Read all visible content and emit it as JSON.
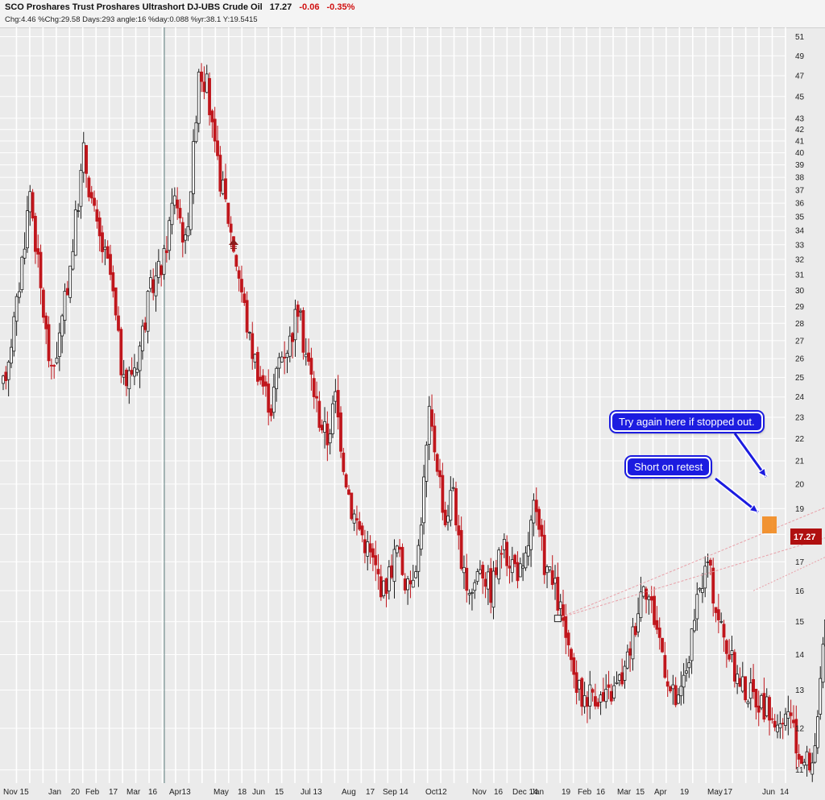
{
  "header": {
    "title": "SCO Proshares Trust Proshares Ultrashort DJ-UBS Crude Oil",
    "last": "17.27",
    "change": "-0.06",
    "change_pct": "-0.35%",
    "stats": "Chg:4.46 %Chg:29.58 Days:293 angle:16 %day:0.088 %yr:38.1 Y:19.5415"
  },
  "colors": {
    "up": "#1a1a1a",
    "down": "#c0161c",
    "grid": "#ffffff",
    "background": "#ebebeb",
    "trendline": "#e8a0a8",
    "price_tag": "#b01010",
    "annotation": "#1c1ce0",
    "orange_box": "#f28a1e"
  },
  "annotations": [
    {
      "text": "Try again here if stopped out."
    },
    {
      "text": "Short on retest"
    }
  ],
  "price_tag": "17.27",
  "chart_data": {
    "type": "candlestick",
    "scale": "log",
    "ylim": [
      10.7,
      52
    ],
    "y_ticks": [
      11,
      12,
      13,
      14,
      15,
      16,
      17,
      18,
      19,
      20,
      21,
      22,
      23,
      24,
      25,
      26,
      27,
      28,
      29,
      30,
      31,
      32,
      33,
      34,
      35,
      36,
      37,
      38,
      39,
      40,
      41,
      42,
      43,
      45,
      47,
      49,
      51
    ],
    "x_ticks": [
      "Nov 15",
      "Jan",
      "20",
      "Feb",
      "17",
      "Mar",
      "16",
      "Apr13",
      "May",
      "18",
      "Jun",
      "15",
      "Jul 13",
      "Aug",
      "17",
      "Sep 14",
      "Oct12",
      "Nov",
      "16",
      "Dec 14",
      "Jan",
      "19",
      "Feb",
      "16",
      "Mar",
      "15",
      "Apr",
      "19",
      "May",
      "17",
      "Jun",
      "14"
    ],
    "grid": true,
    "bars": 293,
    "price_path": [
      [
        0,
        24.5
      ],
      [
        5,
        29
      ],
      [
        10,
        37
      ],
      [
        14,
        30
      ],
      [
        18,
        25
      ],
      [
        22,
        28
      ],
      [
        26,
        33
      ],
      [
        30,
        40
      ],
      [
        35,
        34
      ],
      [
        40,
        31
      ],
      [
        45,
        24.5
      ],
      [
        50,
        26
      ],
      [
        55,
        30
      ],
      [
        60,
        32
      ],
      [
        64,
        37
      ],
      [
        68,
        33
      ],
      [
        71,
        40
      ],
      [
        73,
        48
      ],
      [
        76,
        46
      ],
      [
        79,
        40
      ],
      [
        83,
        36
      ],
      [
        88,
        31
      ],
      [
        92,
        27
      ],
      [
        96,
        25
      ],
      [
        100,
        23.5
      ],
      [
        103,
        26
      ],
      [
        107,
        27
      ],
      [
        110,
        29
      ],
      [
        112,
        27
      ],
      [
        115,
        25
      ],
      [
        118,
        23
      ],
      [
        121,
        22
      ],
      [
        124,
        24
      ],
      [
        127,
        21
      ],
      [
        130,
        19
      ],
      [
        134,
        18
      ],
      [
        138,
        17
      ],
      [
        142,
        16
      ],
      [
        147,
        17.5
      ],
      [
        151,
        16
      ],
      [
        155,
        17.5
      ],
      [
        159,
        23
      ],
      [
        162,
        21
      ],
      [
        165,
        18.5
      ],
      [
        168,
        20
      ],
      [
        171,
        16.5
      ],
      [
        175,
        16
      ],
      [
        178,
        17
      ],
      [
        182,
        16
      ],
      [
        186,
        17.5
      ],
      [
        190,
        17
      ],
      [
        194,
        16.5
      ],
      [
        198,
        19
      ],
      [
        202,
        17
      ],
      [
        206,
        16
      ],
      [
        209,
        15
      ],
      [
        212,
        13.5
      ],
      [
        216,
        12.8
      ],
      [
        220,
        13
      ],
      [
        224,
        12.7
      ],
      [
        228,
        13
      ],
      [
        232,
        13.5
      ],
      [
        236,
        15
      ],
      [
        239,
        16.5
      ],
      [
        242,
        15.5
      ],
      [
        245,
        14.5
      ],
      [
        249,
        13
      ],
      [
        252,
        12.6
      ],
      [
        256,
        14
      ],
      [
        260,
        16
      ],
      [
        263,
        17
      ],
      [
        266,
        15.5
      ],
      [
        269,
        14.5
      ],
      [
        273,
        13.5
      ],
      [
        277,
        13
      ],
      [
        281,
        12.8
      ],
      [
        285,
        12.5
      ],
      [
        288,
        12.2
      ],
      [
        290,
        11.8
      ],
      [
        293,
        12.5
      ],
      [
        296,
        11.5
      ],
      [
        299,
        11.2
      ],
      [
        302,
        11.2
      ],
      [
        305,
        13
      ],
      [
        307,
        15
      ],
      [
        309,
        16.5
      ],
      [
        311,
        17.3
      ]
    ],
    "trendlines": [
      {
        "from": [
          207,
          15.1
        ],
        "to": [
          317,
          19.5
        ]
      },
      {
        "from": [
          207,
          15.1
        ],
        "to": [
          311,
          18.0
        ]
      },
      {
        "from": [
          280,
          16.0
        ],
        "to": [
          327,
          18.1
        ]
      }
    ],
    "markers": [
      {
        "type": "square",
        "x": 207,
        "y": 15.1
      },
      {
        "type": "square",
        "x": 317,
        "y": 19.5
      }
    ]
  }
}
